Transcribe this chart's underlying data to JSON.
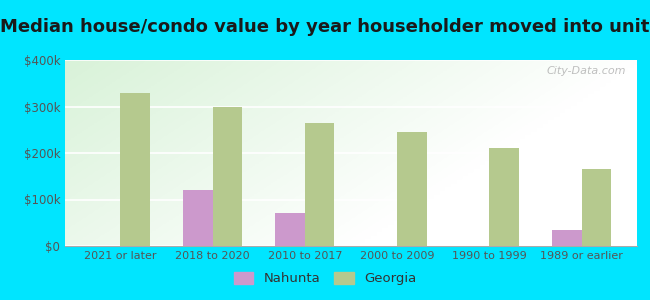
{
  "title": "Median house/condo value by year householder moved into unit",
  "categories": [
    "2021 or later",
    "2018 to 2020",
    "2010 to 2017",
    "2000 to 2009",
    "1990 to 1999",
    "1989 or earlier"
  ],
  "nahunta": [
    0,
    120000,
    70000,
    0,
    0,
    35000
  ],
  "georgia": [
    330000,
    300000,
    265000,
    245000,
    210000,
    165000
  ],
  "nahunta_color": "#cc99cc",
  "georgia_color": "#b5c98e",
  "outer_background": "#00e5ff",
  "ylim": [
    0,
    400000
  ],
  "yticks": [
    0,
    100000,
    200000,
    300000,
    400000
  ],
  "ytick_labels": [
    "$0",
    "$100k",
    "$200k",
    "$300k",
    "$400k"
  ],
  "title_fontsize": 13,
  "watermark": "City-Data.com"
}
